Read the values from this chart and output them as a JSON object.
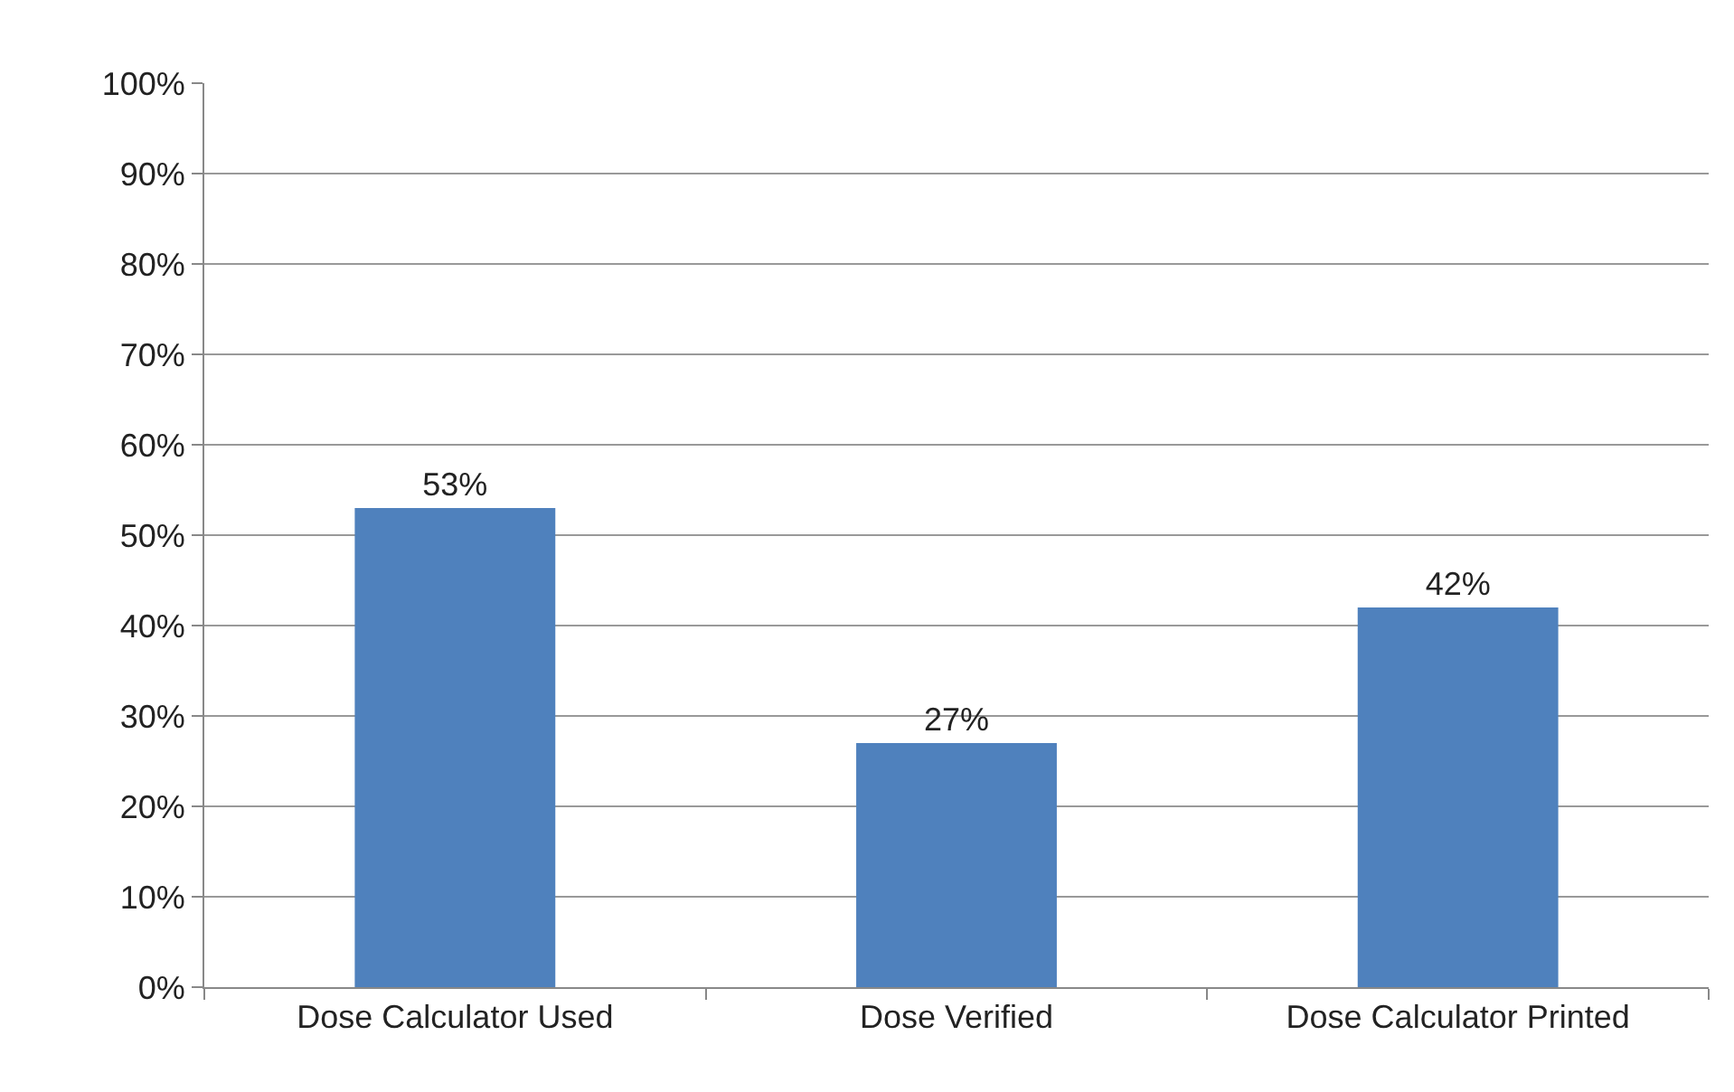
{
  "chart_data": {
    "type": "bar",
    "categories": [
      "Dose Calculator Used",
      "Dose Verified",
      "Dose Calculator Printed"
    ],
    "values": [
      53,
      27,
      42
    ],
    "value_labels": [
      "53%",
      "27%",
      "42%"
    ],
    "color": "#4f81bd",
    "ylim": [
      0,
      100
    ],
    "yticks": [
      {
        "value": 0,
        "label": "0%"
      },
      {
        "value": 10,
        "label": "10%"
      },
      {
        "value": 20,
        "label": "20%"
      },
      {
        "value": 30,
        "label": "30%"
      },
      {
        "value": 40,
        "label": "40%"
      },
      {
        "value": 50,
        "label": "50%"
      },
      {
        "value": 60,
        "label": "60%"
      },
      {
        "value": 70,
        "label": "70%"
      },
      {
        "value": 80,
        "label": "80%"
      },
      {
        "value": 90,
        "label": "90%"
      },
      {
        "value": 100,
        "label": "100%"
      }
    ],
    "grid": "y",
    "legend": false
  }
}
